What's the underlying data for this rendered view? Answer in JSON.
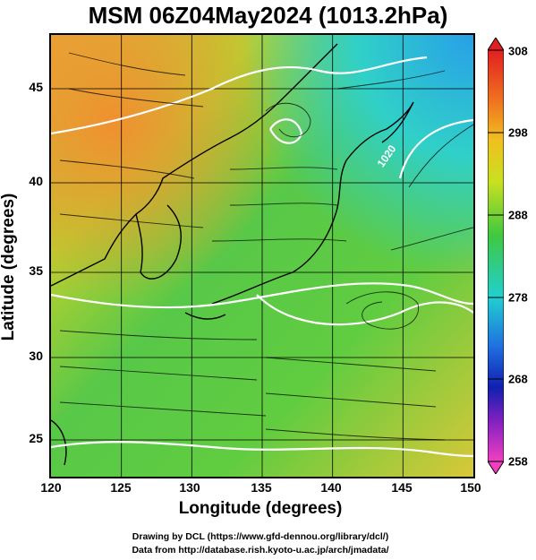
{
  "title": "MSM 06Z04May2024 (1013.2hPa)",
  "x_axis": {
    "label": "Longitude (degrees)",
    "ticks": [
      "120",
      "125",
      "130",
      "135",
      "140",
      "145",
      "150"
    ]
  },
  "y_axis": {
    "label": "Latitude  (degrees)",
    "ticks": [
      "45",
      "40",
      "35",
      "30",
      "25"
    ]
  },
  "colorbar": {
    "ticks": [
      "308",
      "298",
      "288",
      "278",
      "268",
      "258"
    ]
  },
  "contour_labels": [
    "1020"
  ],
  "credits": {
    "line1": "Drawing by DCL (https://www.gfd-dennou.org/library/dcl/)",
    "line2": "Data from http://database.rish.kyoto-u.ac.jp/arch/jmadata/"
  },
  "colors": {
    "warm": "#f0a030",
    "mid": "#7cd040",
    "cool": "#30c8e0",
    "land_outline": "#000000",
    "contour": "#ffffff"
  }
}
